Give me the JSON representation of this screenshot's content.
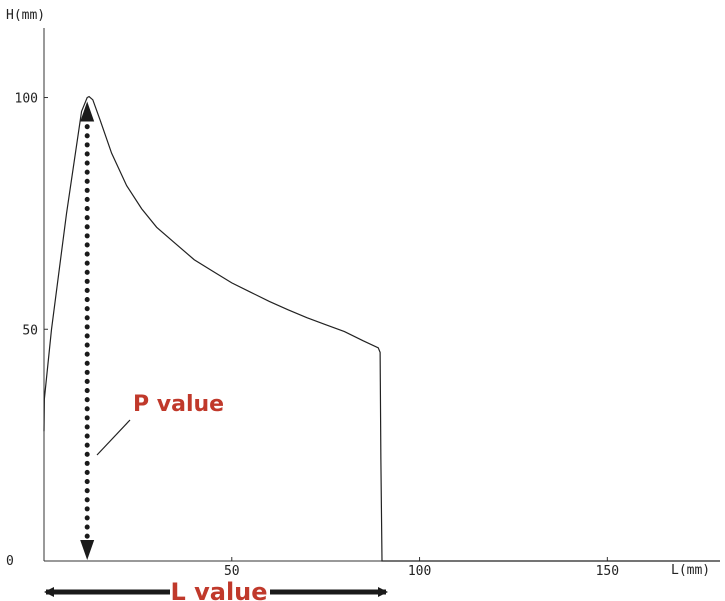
{
  "chart_data": {
    "type": "line",
    "xlabel": "L(mm)",
    "ylabel": "H(mm)",
    "xlim": [
      0,
      180
    ],
    "ylim": [
      0,
      115
    ],
    "x_ticks": [
      {
        "value": 0,
        "label": "0"
      },
      {
        "value": 50,
        "label": "50"
      },
      {
        "value": 100,
        "label": "100"
      },
      {
        "value": 150,
        "label": "150"
      }
    ],
    "y_ticks": [
      {
        "value": 50,
        "label": "50"
      },
      {
        "value": 100,
        "label": "100"
      }
    ],
    "grid": false,
    "series": [
      {
        "x": [
          0,
          0.1,
          2,
          6,
          10,
          11.5,
          12,
          13,
          15,
          18,
          22,
          26,
          30,
          35,
          40,
          45,
          50,
          55,
          60,
          65,
          70,
          75,
          80,
          85,
          89,
          89.5,
          89.7,
          90,
          180
        ],
        "y": [
          28,
          35,
          50,
          75,
          97,
          100,
          100.2,
          99.5,
          95,
          88,
          81,
          76,
          72,
          68.5,
          65,
          62.5,
          60,
          58,
          56,
          54.2,
          52.5,
          51,
          49.5,
          47.5,
          46,
          45,
          22,
          0,
          0
        ]
      }
    ],
    "annotations": {
      "p_label": "P value",
      "l_label": "L value",
      "p_value_x": 11.5,
      "p_value_y": 100
    },
    "colors": {
      "line": "#222222",
      "annotation": "#c0392b",
      "arrow": "#1a1a1a"
    }
  }
}
